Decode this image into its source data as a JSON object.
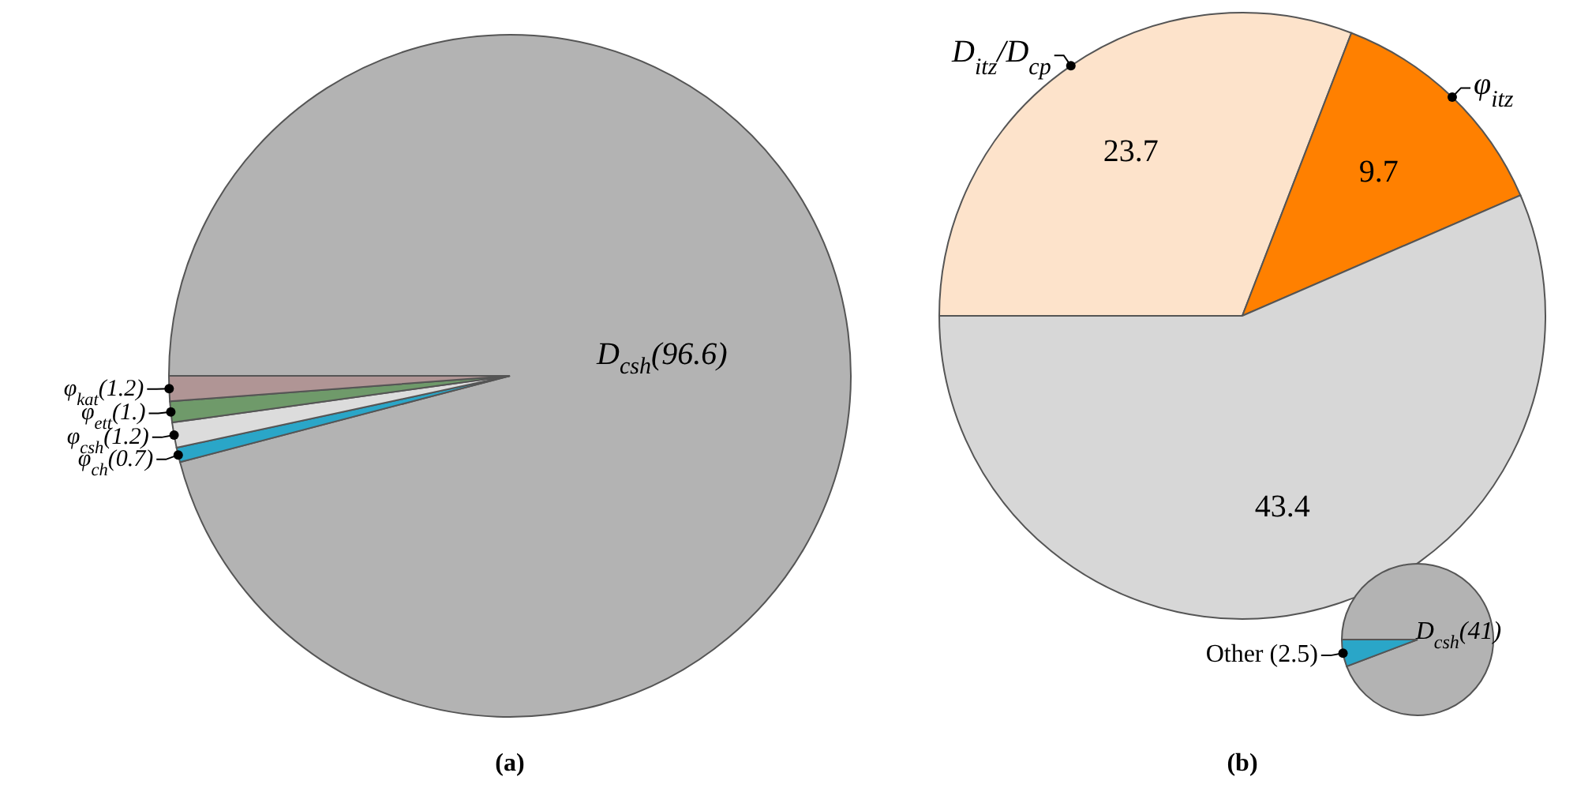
{
  "chart_data": [
    {
      "type": "pie",
      "title": "(a)",
      "categories": [
        "D$_{csh}$",
        "φ$_{ch}$",
        "φ$_{csh}$",
        "φ$_{ett}$",
        "φ$_{kat}$"
      ],
      "values": [
        96.6,
        0.7,
        1.2,
        1,
        1.2
      ],
      "value_labels": [
        "(96.6)",
        "(0.7)",
        "(1.2)",
        "(1.)",
        "(1.2)"
      ],
      "colors": [
        "#b3b3b3",
        "#2aa6c8",
        "#dcdcdc",
        "#6f9a6a",
        "#b09595"
      ]
    },
    {
      "type": "pie",
      "title": "(b)",
      "categories": [
        "D$_{itz}$/D$_{cp}$",
        "φ$_{itz}$",
        null
      ],
      "values": [
        23.7,
        9.7,
        43.4
      ],
      "data_labels": true,
      "colors": [
        "#fde3cb",
        "#ff8000",
        "#d7d7d7"
      ]
    },
    {
      "type": "pie",
      "categories": [
        "D$_{csh}$",
        "Other"
      ],
      "values": [
        41,
        2.5
      ],
      "value_labels": [
        "(41)",
        " (2.5)"
      ],
      "colors": [
        "#b3b3b3",
        "#2aa6c8"
      ]
    }
  ]
}
